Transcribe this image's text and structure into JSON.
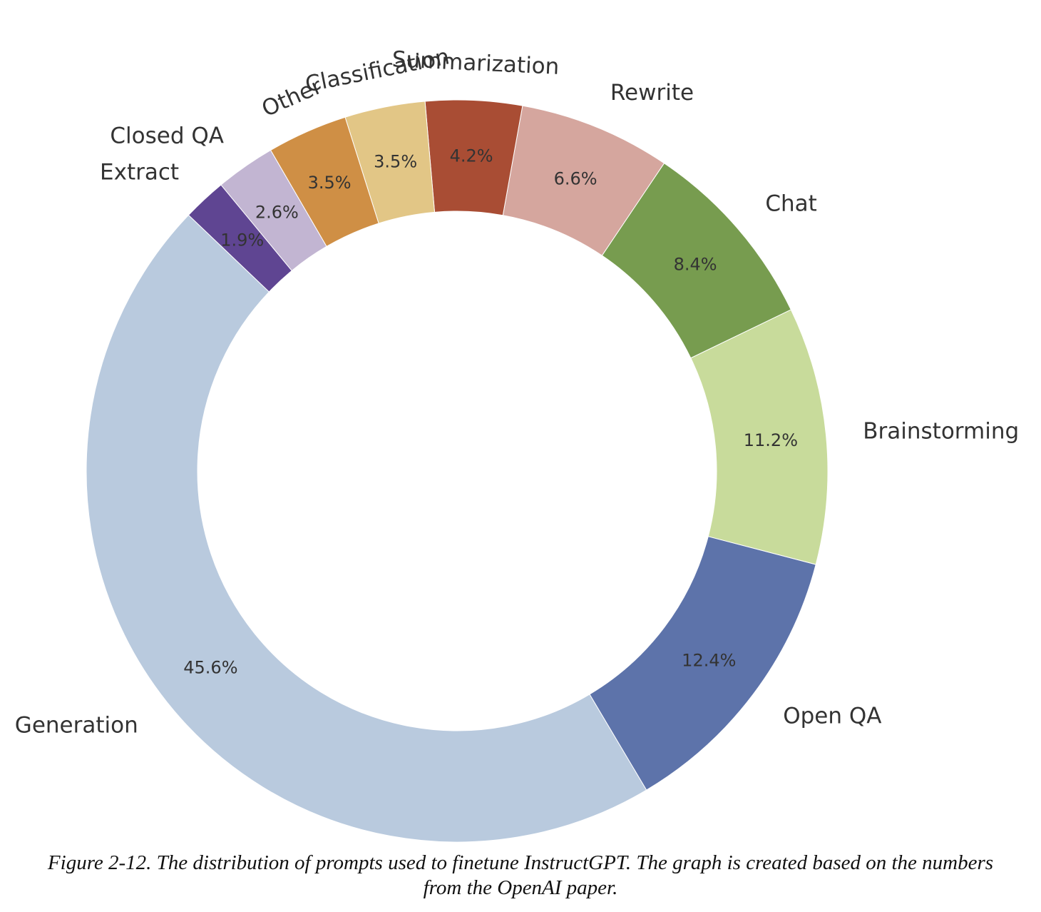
{
  "chart_data": {
    "type": "pie",
    "variant": "donut",
    "categories": [
      "Generation",
      "Open QA",
      "Brainstorming",
      "Chat",
      "Rewrite",
      "Summarization",
      "Classification",
      "Other",
      "Closed QA",
      "Extract"
    ],
    "values": [
      45.6,
      12.4,
      11.2,
      8.4,
      6.6,
      4.2,
      3.5,
      3.5,
      2.6,
      1.9
    ],
    "value_labels": [
      "45.6%",
      "12.4%",
      "11.2%",
      "8.4%",
      "6.6%",
      "4.2%",
      "3.5%",
      "3.5%",
      "2.6%",
      "1.9%"
    ],
    "colors": [
      "#b9cade",
      "#5d73aa",
      "#c8db9b",
      "#779c4f",
      "#d5a69e",
      "#a94d34",
      "#e2c686",
      "#cf8f45",
      "#c2b5d2",
      "#5f4592"
    ],
    "legend": "none",
    "title": ""
  },
  "caption": {
    "text": "Figure 2-12. The distribution of prompts used to finetune InstructGPT. The graph is created based on the numbers from the OpenAI paper."
  }
}
